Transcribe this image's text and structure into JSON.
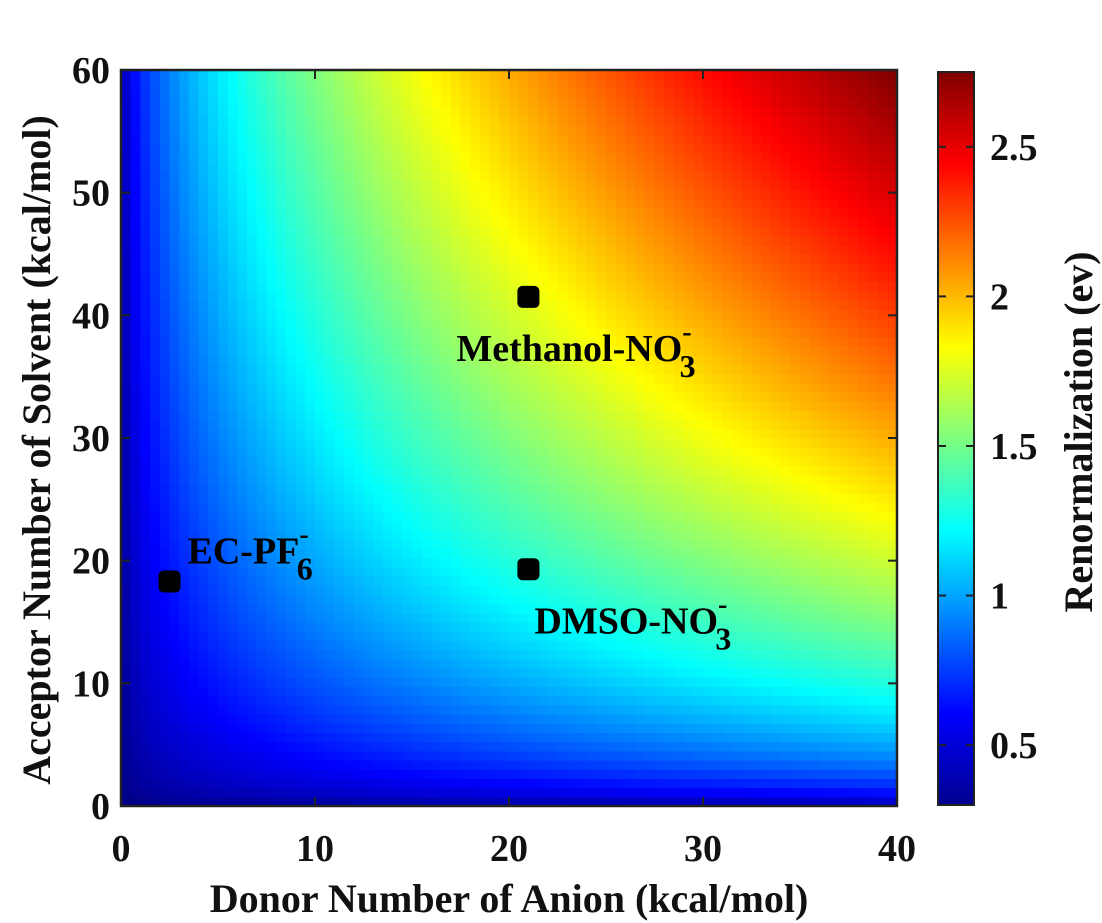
{
  "chart_data": {
    "type": "heatmap",
    "title": "",
    "xlabel": "Donor Number of Anion (kcal/mol)",
    "ylabel": "Acceptor Number of Solvent (kcal/mol)",
    "xlim": [
      0,
      40
    ],
    "ylim": [
      0,
      60
    ],
    "xticks": [
      "0",
      "10",
      "20",
      "30",
      "40"
    ],
    "yticks": [
      "0",
      "10",
      "20",
      "30",
      "40",
      "50",
      "60"
    ],
    "colorbar": {
      "label": "Renormalization (ev)",
      "range": [
        0.3,
        2.75
      ],
      "ticks": [
        "0.5",
        "1",
        "1.5",
        "2",
        "2.5"
      ],
      "colormap": "jet"
    },
    "surface": {
      "description_formula": "value = 0.3 + 2.45 * ((DN/40)*(AN/60))^0.5 approx",
      "min_value": 0.3,
      "max_value": 2.75
    },
    "points": [
      {
        "label": "EC-PF",
        "sub": "6",
        "sup": "-",
        "x": 2.5,
        "y": 18.3
      },
      {
        "label": "DMSO-NO",
        "sub": "3",
        "sup": "-",
        "x": 21.0,
        "y": 19.3
      },
      {
        "label": "Methanol-NO",
        "sub": "3",
        "sup": "-",
        "x": 21.0,
        "y": 41.5
      }
    ],
    "grid": false,
    "colors": {
      "marker": "#000000",
      "frame": "#222222"
    }
  }
}
